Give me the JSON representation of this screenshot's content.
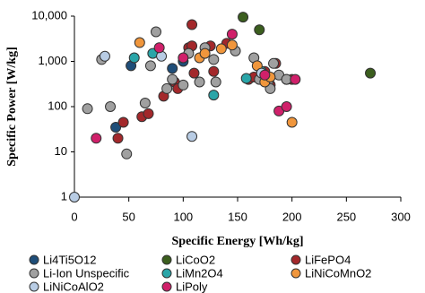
{
  "chart_data": {
    "type": "scatter",
    "x_label": "Specific Energy [Wh/kg]",
    "y_label": "Specific Power [W/kg]",
    "xlim": [
      0,
      300
    ],
    "xticks": [
      0,
      50,
      100,
      150,
      200,
      250,
      300
    ],
    "ylim": [
      1,
      10000
    ],
    "log_y": true,
    "grid": false,
    "yticks": [
      1,
      10,
      100,
      {
        "value": 1000,
        "label": "1,000"
      },
      {
        "value": 10000,
        "label": "10,000"
      }
    ],
    "series": [
      {
        "name": "Li4Ti5O12",
        "color": "#1f4e79",
        "x": [
          38,
          52,
          90,
          100
        ],
        "values": [
          35,
          800,
          700,
          1000
        ]
      },
      {
        "name": "LiCoO2",
        "color": "#3b5e1e",
        "x": [
          155,
          170,
          272
        ],
        "values": [
          9500,
          5000,
          550
        ]
      },
      {
        "name": "LiFePO4",
        "color": "#a3282b",
        "x": [
          40,
          45,
          62,
          68,
          82,
          92,
          95,
          105,
          108,
          108,
          110,
          125,
          128,
          140,
          160,
          165,
          175,
          180,
          185,
          195,
          200
        ],
        "values": [
          20,
          45,
          60,
          70,
          170,
          350,
          250,
          2000,
          6500,
          2200,
          550,
          2200,
          600,
          2500,
          400,
          450,
          600,
          300,
          900,
          400,
          400
        ]
      },
      {
        "name": "Li-Ion Unspecific",
        "color": "#a0a0a0",
        "x": [
          12,
          25,
          33,
          48,
          75,
          70,
          65,
          85,
          90,
          100,
          105,
          115,
          120,
          128,
          130,
          148,
          165,
          170,
          178,
          180,
          183,
          188,
          195
        ],
        "values": [
          90,
          1100,
          100,
          9,
          4500,
          800,
          120,
          250,
          400,
          300,
          1500,
          350,
          2000,
          1100,
          350,
          1700,
          1200,
          400,
          350,
          250,
          900,
          500,
          400
        ]
      },
      {
        "name": "LiMn2O4",
        "color": "#2aa5a8",
        "x": [
          55,
          72,
          128,
          158,
          172
        ],
        "values": [
          1200,
          1500,
          180,
          420,
          600
        ]
      },
      {
        "name": "LiNiCoMnO2",
        "color": "#f0963c",
        "x": [
          60,
          115,
          120,
          135,
          145,
          168,
          175,
          180,
          200
        ],
        "values": [
          2600,
          1200,
          1500,
          1900,
          2300,
          800,
          350,
          450,
          45
        ]
      },
      {
        "name": "LiNiCoAlO2",
        "color": "#b8cce4",
        "x": [
          0,
          28,
          80,
          108,
          172
        ],
        "values": [
          1,
          1300,
          1300,
          22,
          550
        ]
      },
      {
        "name": "LiPoly",
        "color": "#d0206a",
        "x": [
          20,
          78,
          100,
          145,
          175,
          188,
          195,
          203
        ],
        "values": [
          20,
          2000,
          1200,
          4000,
          500,
          80,
          100,
          400
        ]
      }
    ]
  }
}
